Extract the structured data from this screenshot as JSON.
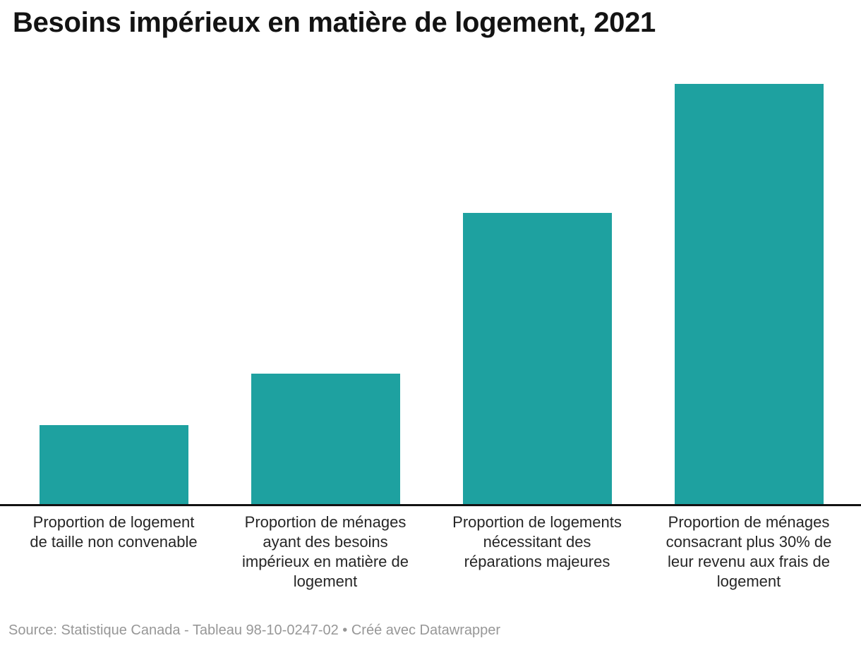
{
  "chart_data": {
    "type": "bar",
    "orientation": "vertical",
    "title": "Besoins impérieux en matière de logement, 2021",
    "categories": [
      "Proportion de logement de taille non convenable",
      "Proportion de ménages ayant des besoins impérieux en matière de logement",
      "Proportion de logements nécessitant des réparations majeures",
      "Proportion de ménages consacrant plus 30% de leur revenu aux frais de logement"
    ],
    "category_lines": [
      [
        "Proportion de logement",
        "de taille non convenable"
      ],
      [
        "Proportion de ménages",
        "ayant des besoins",
        "impérieux en matière de",
        "logement"
      ],
      [
        "Proportion de logements",
        "nécessitant des",
        "réparations majeures"
      ],
      [
        "Proportion de ménages",
        "consacrant plus 30% de",
        "leur revenu aux frais de",
        "logement"
      ]
    ],
    "values": [
      19.2,
      31.4,
      69.4,
      100
    ],
    "value_unit": "relative height, tallest bar = 100 (chart shows no y-axis, gridlines or value labels)",
    "ylim": [
      0,
      100
    ],
    "grid": false,
    "legend": false,
    "bar_color": "#1EA1A0",
    "axis_line_color": "#121212"
  },
  "footer": {
    "full_text": "Source: Statistique Canada - Tableau 98-10-0247-02 • Créé avec Datawrapper"
  },
  "colors": {
    "background": "#ffffff",
    "title_text": "#131313",
    "category_label_text": "#262626",
    "footer_text": "#979797"
  }
}
